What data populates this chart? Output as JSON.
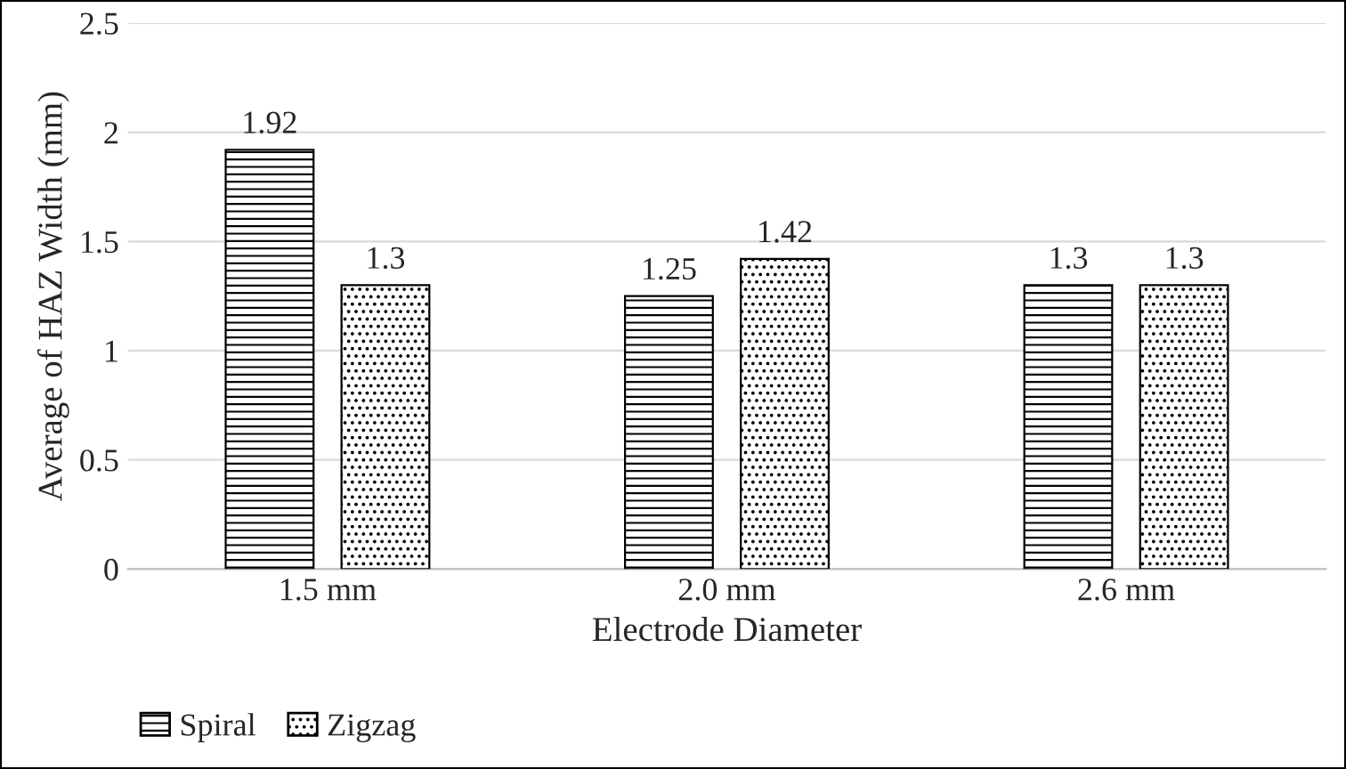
{
  "chart_data": {
    "type": "bar",
    "xlabel": "Electrode Diameter",
    "ylabel": "Average of HAZ Width (mm)",
    "categories": [
      "1.5 mm",
      "2.0 mm",
      "2.6 mm"
    ],
    "series": [
      {
        "name": "Spiral",
        "color": "#000000",
        "values": [
          1.92,
          1.25,
          1.3
        ]
      },
      {
        "name": "Zigzag",
        "color": "#000000",
        "values": [
          1.3,
          1.42,
          1.3
        ]
      }
    ],
    "ylim": [
      0,
      2.5
    ],
    "yticks": [
      0,
      0.5,
      1,
      1.5,
      2,
      2.5
    ],
    "grid": "y",
    "legend": "bottom left",
    "data_labels": true
  }
}
